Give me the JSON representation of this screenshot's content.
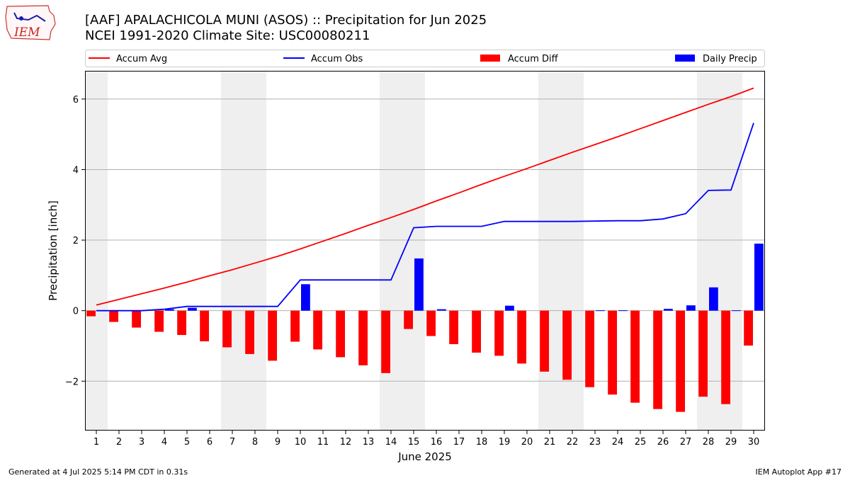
{
  "title": "[AAF] APALACHICOLA MUNI (ASOS) :: Precipitation for Jun 2025",
  "subtitle": "NCEI 1991-2020 Climate Site: USC00080211",
  "logo_text": "IEM",
  "footer_left": "Generated at 4 Jul 2025 5:14 PM CDT in 0.31s",
  "footer_right": "IEM Autoplot App #17",
  "chart_data": {
    "type": "bar",
    "xlabel": "June 2025",
    "ylabel": "Precipitation [inch]",
    "xlim": [
      0.5,
      30.5
    ],
    "ylim": [
      -3.4,
      6.8
    ],
    "yticks": [
      -2,
      0,
      2,
      4,
      6
    ],
    "ytick_labels": [
      "−2",
      "0",
      "2",
      "4",
      "6"
    ],
    "x": [
      1,
      2,
      3,
      4,
      5,
      6,
      7,
      8,
      9,
      10,
      11,
      12,
      13,
      14,
      15,
      16,
      17,
      18,
      19,
      20,
      21,
      22,
      23,
      24,
      25,
      26,
      27,
      28,
      29,
      30
    ],
    "weekend_spans": [
      [
        0.5,
        1.5
      ],
      [
        6.5,
        8.5
      ],
      [
        13.5,
        15.5
      ],
      [
        20.5,
        22.5
      ],
      [
        27.5,
        29.5
      ]
    ],
    "grid": "horizontal",
    "legend_position": "top",
    "series": [
      {
        "name": "Accum Avg",
        "kind": "line",
        "color": "#ff0000",
        "values": [
          0.16,
          0.32,
          0.48,
          0.64,
          0.81,
          0.99,
          1.16,
          1.35,
          1.54,
          1.75,
          1.97,
          2.19,
          2.42,
          2.64,
          2.87,
          3.11,
          3.34,
          3.58,
          3.81,
          4.03,
          4.26,
          4.49,
          4.71,
          4.93,
          5.16,
          5.39,
          5.62,
          5.85,
          6.07,
          6.31
        ]
      },
      {
        "name": "Accum Obs",
        "kind": "line",
        "color": "#0000ff",
        "values": [
          0.0,
          0.0,
          0.0,
          0.04,
          0.12,
          0.12,
          0.12,
          0.12,
          0.12,
          0.87,
          0.87,
          0.87,
          0.87,
          0.87,
          2.35,
          2.39,
          2.39,
          2.39,
          2.53,
          2.53,
          2.53,
          2.53,
          2.54,
          2.55,
          2.55,
          2.6,
          2.75,
          3.41,
          3.42,
          5.32
        ]
      },
      {
        "name": "Accum Diff",
        "kind": "bar",
        "color": "#ff0000",
        "values": [
          -0.16,
          -0.32,
          -0.48,
          -0.6,
          -0.69,
          -0.87,
          -1.04,
          -1.23,
          -1.42,
          -0.88,
          -1.1,
          -1.32,
          -1.55,
          -1.77,
          -0.52,
          -0.72,
          -0.95,
          -1.19,
          -1.28,
          -1.5,
          -1.73,
          -1.96,
          -2.17,
          -2.38,
          -2.61,
          -2.79,
          -2.87,
          -2.44,
          -2.65,
          -0.99
        ]
      },
      {
        "name": "Daily Precip",
        "kind": "bar",
        "color": "#0000ff",
        "values": [
          0,
          0,
          0,
          0.04,
          0.08,
          0,
          0,
          0,
          0,
          0.75,
          0,
          0,
          0,
          0,
          1.48,
          0.04,
          0,
          0,
          0.14,
          0,
          0,
          0,
          0.01,
          0.01,
          0,
          0.05,
          0.15,
          0.66,
          0.01,
          1.9
        ]
      }
    ]
  }
}
